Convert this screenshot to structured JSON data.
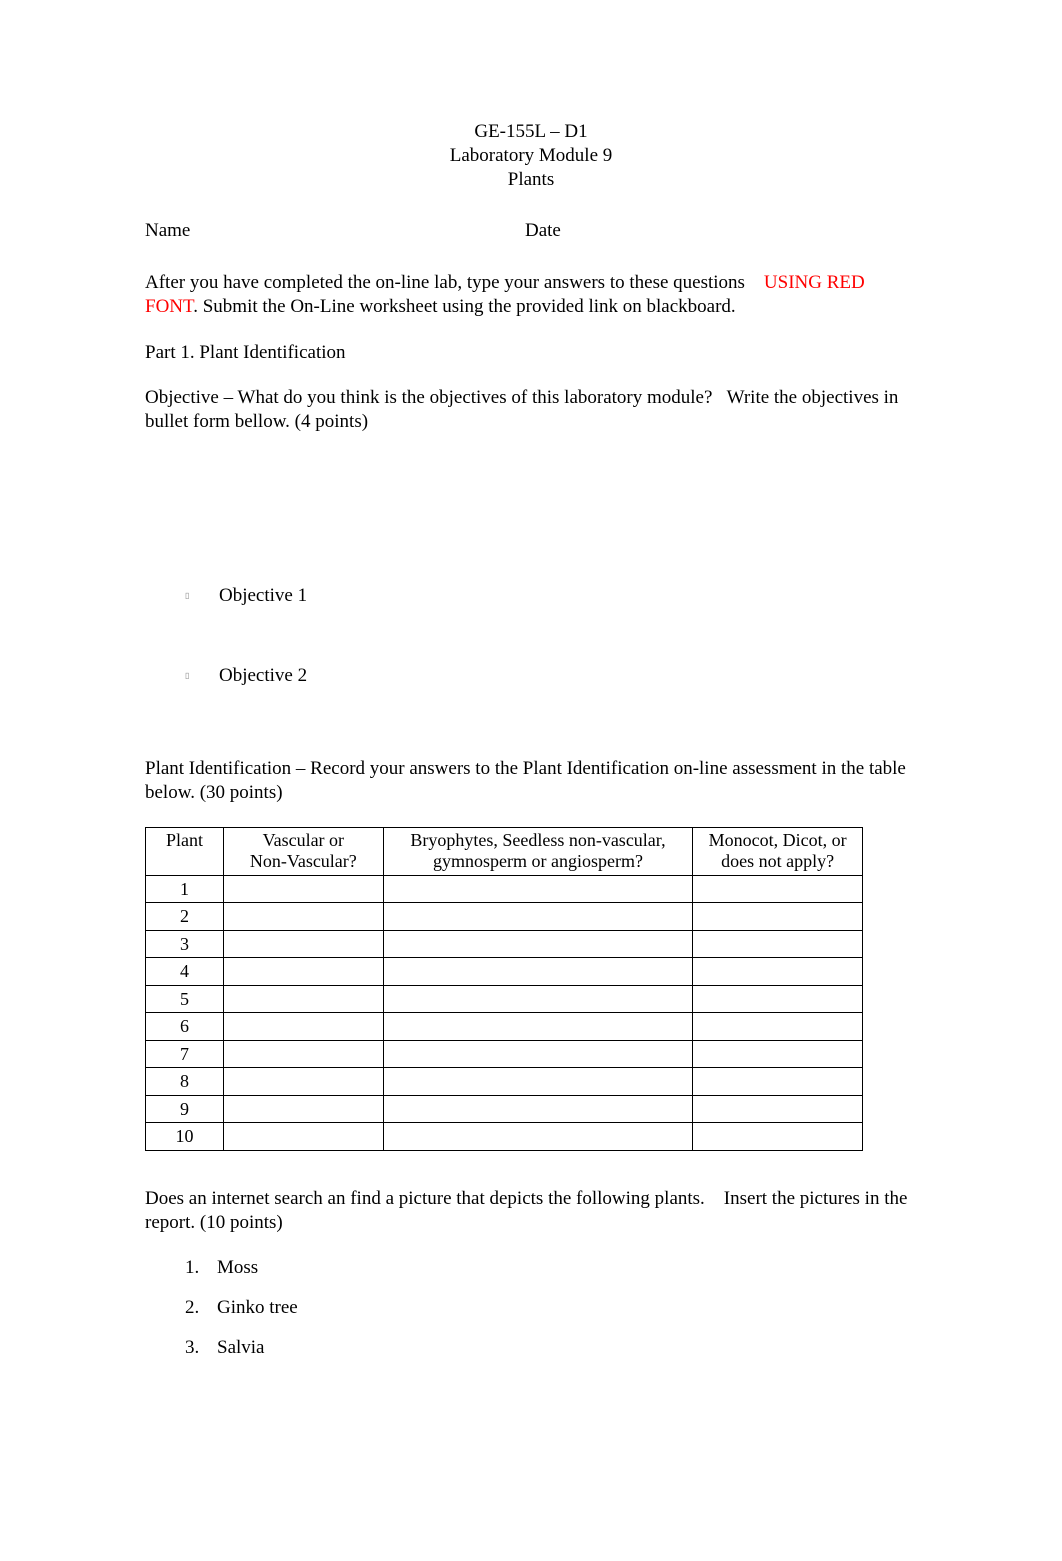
{
  "header": {
    "line1": "GE-155L – D1",
    "line2": "Laboratory Module 9",
    "line3": "Plants"
  },
  "labels": {
    "name": "Name",
    "date": "Date"
  },
  "intro": {
    "preRed": "After you have completed the on-line lab, type your answers to these questions    ",
    "red": "USING RED FONT",
    "postRed": ". Submit the On-Line worksheet using the provided link on blackboard."
  },
  "part1_heading": "Part 1. Plant Identification",
  "objective_para": "Objective – What do you think is the objectives of this laboratory module?   Write the objectives in bullet form bellow. (4 points)",
  "bullets": [
    "Objective  1",
    "Objective 2"
  ],
  "plant_id_para": "Plant Identification  – Record your answers to the Plant Identification on-line assessment in the table below.  (30 points)",
  "table": {
    "headers": {
      "plant": "Plant",
      "vascular_l1": "Vascular or",
      "vascular_l2": "Non-Vascular?",
      "bryo_l1": "Bryophytes, Seedless non-vascular,",
      "bryo_l2": "gymnosperm or angiosperm?",
      "mono_l1": "Monocot, Dicot, or",
      "mono_l2": "does not apply?"
    },
    "rows": [
      "1",
      "2",
      "3",
      "4",
      "5",
      "6",
      "7",
      "8",
      "9",
      "10"
    ]
  },
  "search_para": "Does an internet search an find a picture that depicts the following plants.    Insert the pictures in the report.   (10 points)",
  "plant_list": [
    {
      "num": "1.",
      "name": "Moss"
    },
    {
      "num": "2.",
      "name": "Ginko tree"
    },
    {
      "num": "3.",
      "name": "Salvia"
    }
  ],
  "colors": {
    "text": "#000000",
    "red": "#ff0000",
    "background": "#ffffff",
    "border": "#000000"
  }
}
